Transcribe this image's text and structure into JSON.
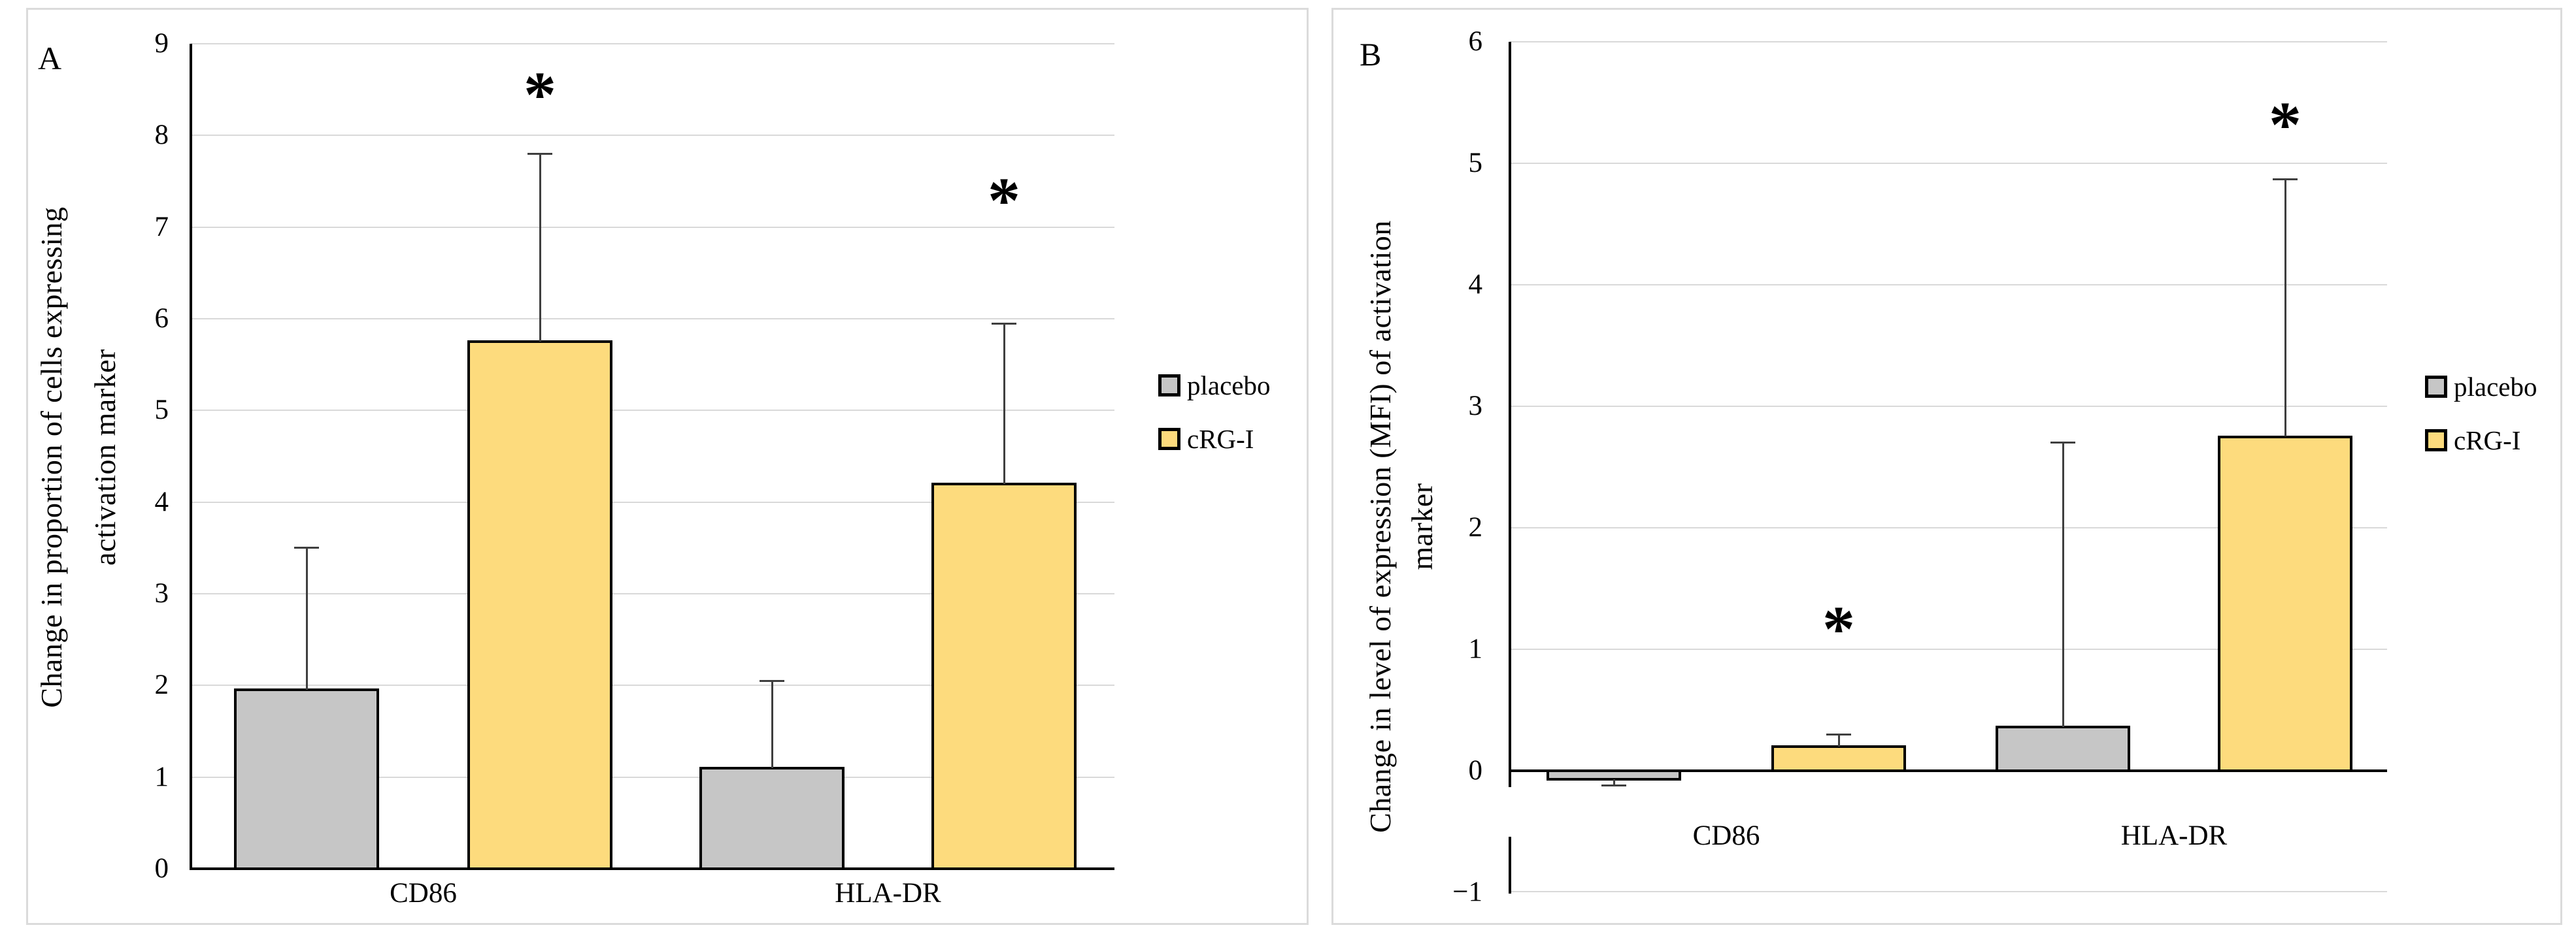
{
  "figure": {
    "panels": [
      {
        "label": "A",
        "y_axis_title_lines": [
          "Change in proportion of cells expressing",
          "activation marker"
        ],
        "legend": [
          {
            "label": "placebo",
            "color": "#C6C6C6"
          },
          {
            "label": "cRG-I",
            "color": "#FDDB7D"
          }
        ]
      },
      {
        "label": "B",
        "y_axis_title_lines": [
          "Change in level of expression (MFI) of activation",
          "marker"
        ],
        "legend": [
          {
            "label": "placebo",
            "color": "#C6C6C6"
          },
          {
            "label": "cRG-I",
            "color": "#FDDB7D"
          }
        ]
      }
    ],
    "colors": {
      "placebo_fill": "#C6C6C6",
      "crgi_fill": "#FDDB7D",
      "bar_border": "#000000",
      "gridline": "#D9D9D9",
      "error_bar": "#3F3F3F",
      "panel_border": "#DBDBDB"
    }
  },
  "chart_data": [
    {
      "type": "bar",
      "panel": "A",
      "title": "",
      "xlabel": "",
      "ylabel": "Change in proportion of cells expressing activation marker",
      "categories": [
        "CD86",
        "HLA-DR"
      ],
      "series": [
        {
          "name": "placebo",
          "color": "#C6C6C6",
          "values": [
            1.95,
            1.1
          ],
          "error_whisker_tops": [
            3.5,
            2.05
          ]
        },
        {
          "name": "cRG-I",
          "color": "#FDDB7D",
          "values": [
            5.75,
            4.2
          ],
          "error_whisker_tops": [
            7.8,
            5.95
          ]
        }
      ],
      "significance": [
        {
          "category": "CD86",
          "series": "cRG-I",
          "marker": "*",
          "y": 8.55
        },
        {
          "category": "HLA-DR",
          "series": "cRG-I",
          "marker": "*",
          "y": 7.4
        }
      ],
      "ylim": [
        0,
        9
      ],
      "ytick_values": [
        0,
        1,
        2,
        3,
        4,
        5,
        6,
        7,
        8,
        9
      ],
      "ytick_labels": [
        "0",
        "1",
        "2",
        "3",
        "4",
        "5",
        "6",
        "7",
        "8",
        "9"
      ],
      "grid": true,
      "legend_position": "right"
    },
    {
      "type": "bar",
      "panel": "B",
      "title": "",
      "xlabel": "",
      "ylabel": "Change in level of expression (MFI) of activation marker",
      "categories": [
        "CD86",
        "HLA-DR"
      ],
      "series": [
        {
          "name": "placebo",
          "color": "#C6C6C6",
          "values": [
            -0.07,
            0.36
          ],
          "error_whisker_tops": [
            -0.12,
            2.7
          ]
        },
        {
          "name": "cRG-I",
          "color": "#FDDB7D",
          "values": [
            0.2,
            2.75
          ],
          "error_whisker_tops": [
            0.3,
            4.87
          ]
        }
      ],
      "significance": [
        {
          "category": "CD86",
          "series": "cRG-I",
          "marker": "*",
          "y": 1.25
        },
        {
          "category": "HLA-DR",
          "series": "cRG-I",
          "marker": "*",
          "y": 5.4
        }
      ],
      "ylim": [
        -1,
        6
      ],
      "ytick_values": [
        -1,
        0,
        1,
        2,
        3,
        4,
        5,
        6
      ],
      "ytick_labels": [
        "−1",
        "0",
        "1",
        "2",
        "3",
        "4",
        "5",
        "6"
      ],
      "grid": true,
      "legend_position": "right"
    }
  ]
}
